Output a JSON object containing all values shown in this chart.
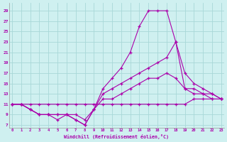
{
  "xlabel": "Windchill (Refroidissement éolien,°C)",
  "background_color": "#cff0f0",
  "grid_color": "#a8d8d8",
  "line_color": "#aa00aa",
  "x_ticks": [
    0,
    1,
    2,
    3,
    4,
    5,
    6,
    7,
    8,
    9,
    10,
    11,
    12,
    13,
    14,
    15,
    16,
    17,
    18,
    19,
    20,
    21,
    22,
    23
  ],
  "y_ticks": [
    7,
    9,
    11,
    13,
    15,
    17,
    19,
    21,
    23,
    25,
    27,
    29
  ],
  "xlim": [
    -0.3,
    23.3
  ],
  "ylim": [
    6.5,
    30.5
  ],
  "line1_x": [
    0,
    1,
    2,
    3,
    4,
    5,
    6,
    7,
    8,
    9,
    10,
    11,
    12,
    13,
    14,
    15,
    16,
    17,
    18,
    19,
    20,
    21,
    22,
    23
  ],
  "line1_y": [
    11,
    11,
    11,
    11,
    11,
    11,
    11,
    11,
    11,
    11,
    11,
    11,
    11,
    11,
    11,
    11,
    11,
    11,
    11,
    11,
    12,
    12,
    12,
    12
  ],
  "line2_x": [
    0,
    1,
    2,
    3,
    4,
    5,
    6,
    7,
    8,
    9,
    10,
    11,
    12,
    13,
    14,
    15,
    16,
    17,
    18,
    19,
    20,
    21,
    22,
    23
  ],
  "line2_y": [
    11,
    11,
    10,
    9,
    9,
    8,
    9,
    8,
    7,
    10,
    12,
    12,
    13,
    14,
    15,
    16,
    16,
    17,
    16,
    14,
    13,
    13,
    13,
    12
  ],
  "line3_x": [
    0,
    1,
    2,
    3,
    4,
    5,
    6,
    7,
    8,
    9,
    10,
    11,
    12,
    13,
    14,
    15,
    16,
    17,
    18,
    19,
    20,
    21,
    22,
    23
  ],
  "line3_y": [
    11,
    11,
    10,
    9,
    9,
    9,
    9,
    9,
    8,
    10,
    13,
    14,
    15,
    16,
    17,
    18,
    19,
    20,
    23,
    17,
    15,
    14,
    13,
    12
  ],
  "line4_x": [
    0,
    1,
    2,
    3,
    4,
    5,
    6,
    7,
    8,
    9,
    10,
    11,
    12,
    13,
    14,
    15,
    16,
    17,
    18,
    19,
    20,
    21,
    22,
    23
  ],
  "line4_y": [
    11,
    11,
    10,
    9,
    9,
    9,
    9,
    8,
    7,
    10,
    14,
    16,
    18,
    21,
    26,
    29,
    29,
    29,
    23,
    14,
    14,
    13,
    12,
    12
  ]
}
